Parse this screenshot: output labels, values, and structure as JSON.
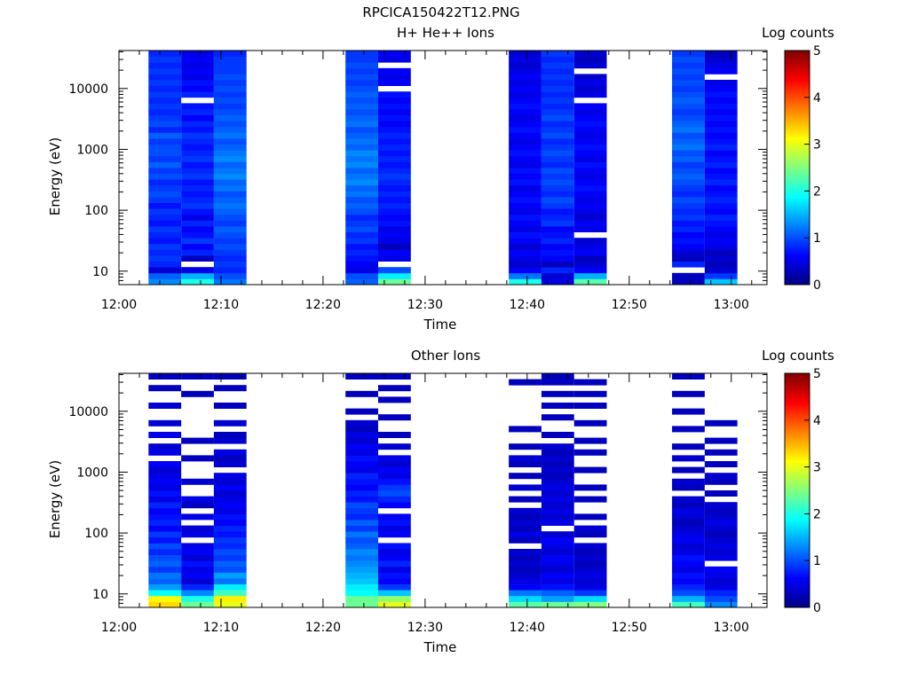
{
  "figure": {
    "title": "RPCICA150422T12.PNG"
  },
  "chart_data": [
    {
      "type": "heatmap",
      "title": "H+ He++ Ions",
      "xlabel": "Time",
      "ylabel": "Energy (eV)",
      "x_ticks": [
        "12:00",
        "12:10",
        "12:20",
        "12:30",
        "12:40",
        "12:50",
        "13:00"
      ],
      "xlim_minutes": [
        0,
        63.5
      ],
      "y_scale": "log",
      "y_ticks": [
        10,
        100,
        1000,
        10000
      ],
      "y_tick_labels": [
        "10",
        "100",
        "1000",
        "10000"
      ],
      "ylim": [
        6,
        42000
      ],
      "colorbar": {
        "label": "Log counts",
        "range": [
          0,
          5
        ],
        "ticks": [
          "0",
          "1",
          "2",
          "3",
          "4",
          "5"
        ],
        "colormap": "jet"
      },
      "columns": [
        {
          "t0": 2.9,
          "t1": 6.1,
          "values": [
            1.3,
            1.1,
            0.4,
            0.8,
            0.9,
            0.8,
            0.9,
            0.7,
            0.8,
            0.9,
            0.7,
            0.8,
            0.9,
            0.7,
            0.9,
            1.0,
            0.9,
            0.8,
            1.0,
            0.9,
            1.1,
            0.9,
            1.0,
            1.0,
            0.9,
            1.1,
            0.8,
            1.0,
            0.9,
            0.8,
            0.9,
            0.8,
            0.9,
            0.8,
            0.9,
            0.8,
            0.9,
            0.8,
            0.9,
            0.8
          ]
        },
        {
          "t0": 6.1,
          "t1": 9.3,
          "values": [
            2.0,
            1.5,
            0.5,
            null,
            0.3,
            0.8,
            0.6,
            0.9,
            0.7,
            0.6,
            0.8,
            0.5,
            0.7,
            0.9,
            0.8,
            0.7,
            0.8,
            0.7,
            0.9,
            0.8,
            0.7,
            0.9,
            0.8,
            0.7,
            0.8,
            0.9,
            0.7,
            0.8,
            0.6,
            0.8,
            0.7,
            null,
            0.8,
            0.6,
            0.7,
            0.5,
            0.6,
            0.5,
            0.6,
            0.5
          ]
        },
        {
          "t0": 9.3,
          "t1": 12.5,
          "values": [
            1.2,
            1.0,
            0.8,
            0.9,
            0.8,
            0.9,
            1.0,
            0.9,
            1.0,
            1.1,
            0.9,
            1.0,
            1.1,
            1.2,
            1.1,
            1.0,
            1.2,
            1.1,
            1.3,
            1.2,
            1.1,
            1.3,
            1.2,
            1.1,
            1.0,
            1.2,
            1.1,
            1.0,
            1.1,
            1.0,
            0.9,
            1.0,
            0.9,
            1.0,
            0.9,
            1.0,
            0.9,
            0.9,
            0.9,
            0.8
          ]
        },
        {
          "t0": 22.2,
          "t1": 25.4,
          "values": [
            1.1,
            1.0,
            0.5,
            0.6,
            0.7,
            0.8,
            0.7,
            0.9,
            0.8,
            1.0,
            0.9,
            0.8,
            1.0,
            1.1,
            1.0,
            1.2,
            1.1,
            1.3,
            1.2,
            1.1,
            1.3,
            1.2,
            1.3,
            1.1,
            1.2,
            1.1,
            1.0,
            1.2,
            1.1,
            1.0,
            1.1,
            1.0,
            1.1,
            1.0,
            0.9,
            1.0,
            0.9,
            1.0,
            0.9,
            0.9
          ]
        },
        {
          "t0": 25.4,
          "t1": 28.6,
          "values": [
            2.4,
            1.8,
            1.0,
            null,
            0.5,
            0.6,
            0.3,
            0.5,
            0.6,
            0.5,
            0.7,
            0.6,
            0.7,
            0.8,
            0.7,
            0.8,
            0.7,
            0.8,
            0.9,
            0.8,
            0.7,
            0.8,
            0.7,
            0.8,
            0.7,
            0.8,
            0.7,
            0.6,
            0.7,
            0.6,
            0.7,
            0.6,
            0.7,
            null,
            0.6,
            0.5,
            0.6,
            null,
            0.5,
            0.6
          ]
        },
        {
          "t0": 38.2,
          "t1": 41.4,
          "values": [
            2.0,
            1.2,
            0.6,
            0.4,
            0.5,
            0.6,
            0.4,
            0.6,
            0.7,
            0.5,
            0.6,
            0.7,
            0.5,
            0.6,
            0.7,
            0.6,
            0.5,
            0.7,
            0.6,
            0.7,
            0.5,
            0.6,
            0.7,
            0.6,
            0.5,
            0.6,
            0.7,
            0.6,
            0.5,
            0.6,
            0.7,
            0.6,
            0.5,
            0.6,
            0.5,
            0.6,
            0.5,
            0.4,
            0.5,
            0.4
          ]
        },
        {
          "t0": 41.4,
          "t1": 44.6,
          "values": [
            0.5,
            0.4,
            0.8,
            0.3,
            0.6,
            0.7,
            0.6,
            0.8,
            0.7,
            0.6,
            0.9,
            0.8,
            0.7,
            0.9,
            1.0,
            0.8,
            0.9,
            1.0,
            0.9,
            1.0,
            0.8,
            0.9,
            1.0,
            0.9,
            0.8,
            1.0,
            0.9,
            0.8,
            1.0,
            0.9,
            0.8,
            0.9,
            0.8,
            0.9,
            0.8,
            0.9,
            0.8,
            0.9,
            0.8,
            0.9
          ]
        },
        {
          "t0": 44.6,
          "t1": 47.8,
          "values": [
            2.3,
            1.5,
            0.6,
            0.4,
            0.3,
            0.6,
            0.5,
            0.4,
            null,
            0.5,
            0.6,
            0.4,
            0.5,
            0.6,
            0.5,
            0.6,
            0.7,
            0.6,
            0.5,
            0.6,
            0.7,
            0.5,
            0.6,
            0.7,
            0.6,
            0.5,
            0.6,
            0.7,
            0.6,
            0.5,
            0.6,
            null,
            0.5,
            0.4,
            0.5,
            0.4,
            null,
            0.4,
            0.3,
            0.4
          ]
        },
        {
          "t0": 54.2,
          "t1": 57.4,
          "values": [
            0.3,
            0.3,
            null,
            0.8,
            0.3,
            0.4,
            0.6,
            0.7,
            0.6,
            0.8,
            0.7,
            0.9,
            0.8,
            0.9,
            1.0,
            0.8,
            0.9,
            1.0,
            1.1,
            1.0,
            0.9,
            1.1,
            1.0,
            1.2,
            1.1,
            1.0,
            1.2,
            1.1,
            1.0,
            0.9,
            1.0,
            1.1,
            1.0,
            0.9,
            1.0,
            0.9,
            1.0,
            0.9,
            1.0,
            0.9
          ]
        },
        {
          "t0": 57.4,
          "t1": 60.6,
          "values": [
            1.6,
            0.9,
            0.4,
            0.3,
            0.4,
            0.3,
            0.5,
            0.6,
            0.5,
            0.6,
            0.7,
            0.8,
            0.6,
            0.7,
            0.8,
            0.7,
            0.6,
            0.8,
            0.7,
            0.6,
            0.8,
            0.7,
            0.6,
            0.8,
            0.7,
            0.6,
            0.7,
            0.6,
            0.7,
            0.6,
            0.7,
            0.6,
            0.7,
            0.6,
            0.5,
            null,
            0.6,
            0.5,
            0.4,
            0.3
          ]
        }
      ]
    },
    {
      "type": "heatmap",
      "title": "Other Ions",
      "xlabel": "Time",
      "ylabel": "Energy (eV)",
      "x_ticks": [
        "12:00",
        "12:10",
        "12:20",
        "12:30",
        "12:40",
        "12:50",
        "13:00"
      ],
      "xlim_minutes": [
        0,
        63.5
      ],
      "y_scale": "log",
      "y_ticks": [
        10,
        100,
        1000,
        10000
      ],
      "y_tick_labels": [
        "10",
        "100",
        "1000",
        "10000"
      ],
      "ylim": [
        6,
        42000
      ],
      "colorbar": {
        "label": "Log counts",
        "range": [
          0,
          5
        ],
        "ticks": [
          "0",
          "1",
          "2",
          "3",
          "4",
          "5"
        ],
        "colormap": "jet"
      },
      "columns": [
        {
          "t0": 2.9,
          "t1": 6.1,
          "values": [
            3.3,
            3.1,
            1.9,
            1.4,
            1.1,
            1.2,
            0.9,
            1.1,
            1.0,
            0.8,
            1.0,
            0.7,
            0.9,
            0.6,
            0.8,
            0.7,
            0.6,
            0.8,
            0.5,
            0.7,
            0.5,
            0.6,
            0.5,
            0.4,
            0.6,
            null,
            0.5,
            0.4,
            null,
            0.5,
            null,
            0.4,
            null,
            null,
            0.4,
            null,
            null,
            0.3,
            null,
            0.3
          ]
        },
        {
          "t0": 6.1,
          "t1": 9.3,
          "values": [
            2.4,
            2.0,
            1.3,
            0.8,
            0.4,
            0.6,
            0.5,
            0.7,
            0.4,
            0.6,
            0.5,
            null,
            0.5,
            0.4,
            null,
            0.5,
            null,
            0.3,
            0.5,
            null,
            null,
            0.4,
            null,
            null,
            null,
            0.3,
            null,
            null,
            0.3,
            null,
            null,
            null,
            null,
            null,
            null,
            null,
            0.3,
            null,
            null,
            0.3
          ]
        },
        {
          "t0": 9.3,
          "t1": 12.5,
          "values": [
            3.0,
            3.2,
            2.2,
            1.8,
            1.2,
            1.4,
            1.0,
            1.1,
            0.9,
            1.0,
            0.8,
            0.9,
            0.7,
            0.8,
            0.6,
            0.7,
            0.5,
            0.6,
            0.5,
            0.4,
            0.6,
            0.4,
            0.5,
            null,
            0.4,
            0.3,
            0.5,
            null,
            0.4,
            0.3,
            null,
            0.4,
            null,
            null,
            0.3,
            null,
            null,
            0.3,
            null,
            0.3
          ]
        },
        {
          "t0": 22.2,
          "t1": 25.4,
          "values": [
            2.4,
            2.4,
            1.9,
            1.8,
            1.6,
            1.5,
            1.4,
            1.3,
            1.2,
            1.3,
            1.1,
            1.0,
            1.2,
            0.9,
            1.1,
            0.8,
            0.9,
            1.0,
            0.7,
            0.8,
            0.6,
            0.7,
            0.8,
            0.5,
            0.6,
            0.7,
            0.5,
            0.6,
            0.4,
            0.5,
            0.3,
            0.4,
            null,
            0.3,
            null,
            null,
            0.3,
            null,
            null,
            0.3
          ]
        },
        {
          "t0": 25.4,
          "t1": 28.6,
          "values": [
            3.0,
            2.6,
            1.6,
            0.9,
            0.6,
            0.7,
            0.5,
            0.8,
            0.6,
            0.5,
            0.7,
            null,
            0.6,
            0.5,
            0.7,
            0.6,
            null,
            0.6,
            0.8,
            1.0,
            0.9,
            0.7,
            0.5,
            0.6,
            0.4,
            0.5,
            null,
            0.4,
            null,
            0.3,
            null,
            null,
            0.3,
            null,
            null,
            0.3,
            null,
            0.3,
            null,
            0.3
          ]
        },
        {
          "t0": 38.2,
          "t1": 41.4,
          "values": [
            2.3,
            1.7,
            1.2,
            0.6,
            0.5,
            0.4,
            0.3,
            0.4,
            0.3,
            0.4,
            null,
            0.3,
            0.5,
            0.3,
            0.4,
            0.3,
            0.4,
            null,
            0.3,
            null,
            0.4,
            null,
            0.3,
            null,
            0.3,
            0.4,
            null,
            0.3,
            null,
            null,
            0.3,
            null,
            null,
            null,
            null,
            null,
            null,
            null,
            0.3,
            null
          ]
        },
        {
          "t0": 41.4,
          "t1": 44.6,
          "values": [
            2.4,
            1.4,
            1.1,
            0.7,
            0.5,
            0.6,
            0.4,
            0.5,
            0.6,
            0.4,
            0.5,
            0.6,
            0.4,
            null,
            0.5,
            0.4,
            0.5,
            0.4,
            0.5,
            0.4,
            0.5,
            0.4,
            0.3,
            0.4,
            0.3,
            0.4,
            0.3,
            0.4,
            null,
            0.3,
            null,
            null,
            0.3,
            null,
            0.3,
            null,
            0.3,
            null,
            0.3,
            0.3
          ]
        },
        {
          "t0": 44.6,
          "t1": 47.8,
          "values": [
            2.5,
            1.7,
            0.9,
            0.5,
            0.4,
            0.5,
            0.4,
            0.3,
            0.4,
            0.3,
            0.4,
            null,
            0.3,
            0.4,
            null,
            0.3,
            null,
            null,
            0.3,
            null,
            0.3,
            null,
            null,
            0.3,
            null,
            null,
            0.3,
            null,
            0.3,
            null,
            null,
            0.3,
            null,
            null,
            0.3,
            null,
            0.3,
            null,
            0.3,
            null
          ]
        },
        {
          "t0": 54.2,
          "t1": 57.4,
          "values": [
            2.2,
            1.5,
            1.0,
            0.8,
            0.6,
            0.7,
            0.5,
            0.6,
            0.7,
            0.5,
            0.4,
            0.6,
            0.5,
            0.4,
            0.3,
            0.4,
            0.5,
            0.3,
            0.4,
            null,
            0.3,
            0.4,
            null,
            0.3,
            null,
            0.4,
            null,
            0.3,
            null,
            null,
            0.3,
            null,
            null,
            0.3,
            null,
            null,
            0.3,
            null,
            null,
            0.3
          ]
        },
        {
          "t0": 57.4,
          "t1": 60.6,
          "values": [
            1.3,
            1.0,
            0.8,
            0.5,
            0.4,
            0.5,
            0.6,
            null,
            0.5,
            0.4,
            0.5,
            0.4,
            0.3,
            0.4,
            0.5,
            0.4,
            0.3,
            0.4,
            null,
            0.3,
            null,
            0.3,
            0.4,
            null,
            0.3,
            null,
            0.3,
            null,
            0.3,
            null,
            null,
            0.3,
            null,
            null,
            null,
            null,
            null,
            null,
            null,
            null
          ]
        }
      ]
    }
  ]
}
